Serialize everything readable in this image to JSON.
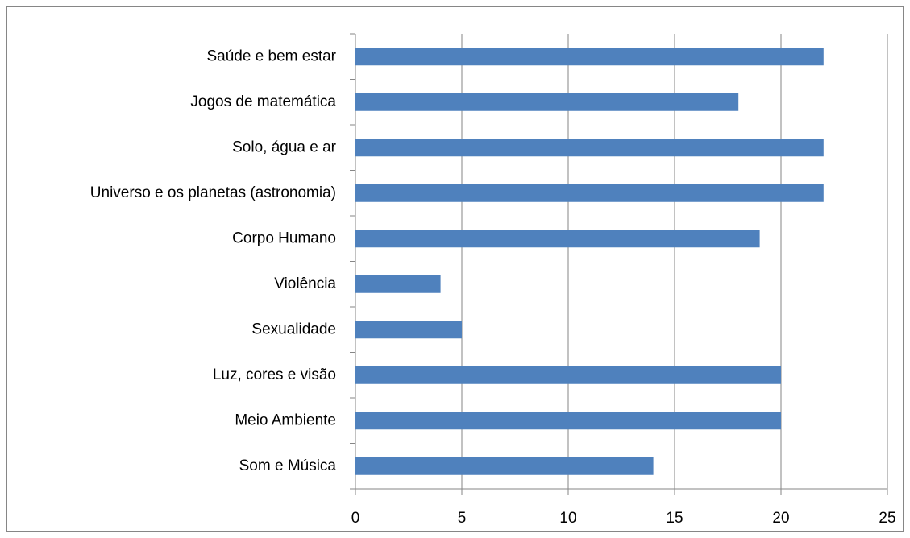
{
  "chart_data": {
    "type": "bar",
    "orientation": "horizontal",
    "categories": [
      "Saúde e bem estar",
      "Jogos de matemática",
      "Solo, água e ar",
      "Universo e os planetas (astronomia)",
      "Corpo Humano",
      "Violência",
      "Sexualidade",
      "Luz, cores e visão",
      "Meio Ambiente",
      "Som e Música"
    ],
    "values": [
      22,
      18,
      22,
      22,
      19,
      4,
      5,
      20,
      20,
      14
    ],
    "color": "#4f81bd",
    "xlim": [
      0,
      25
    ],
    "xticks": [
      0,
      5,
      10,
      15,
      20,
      25
    ],
    "grid": true
  }
}
